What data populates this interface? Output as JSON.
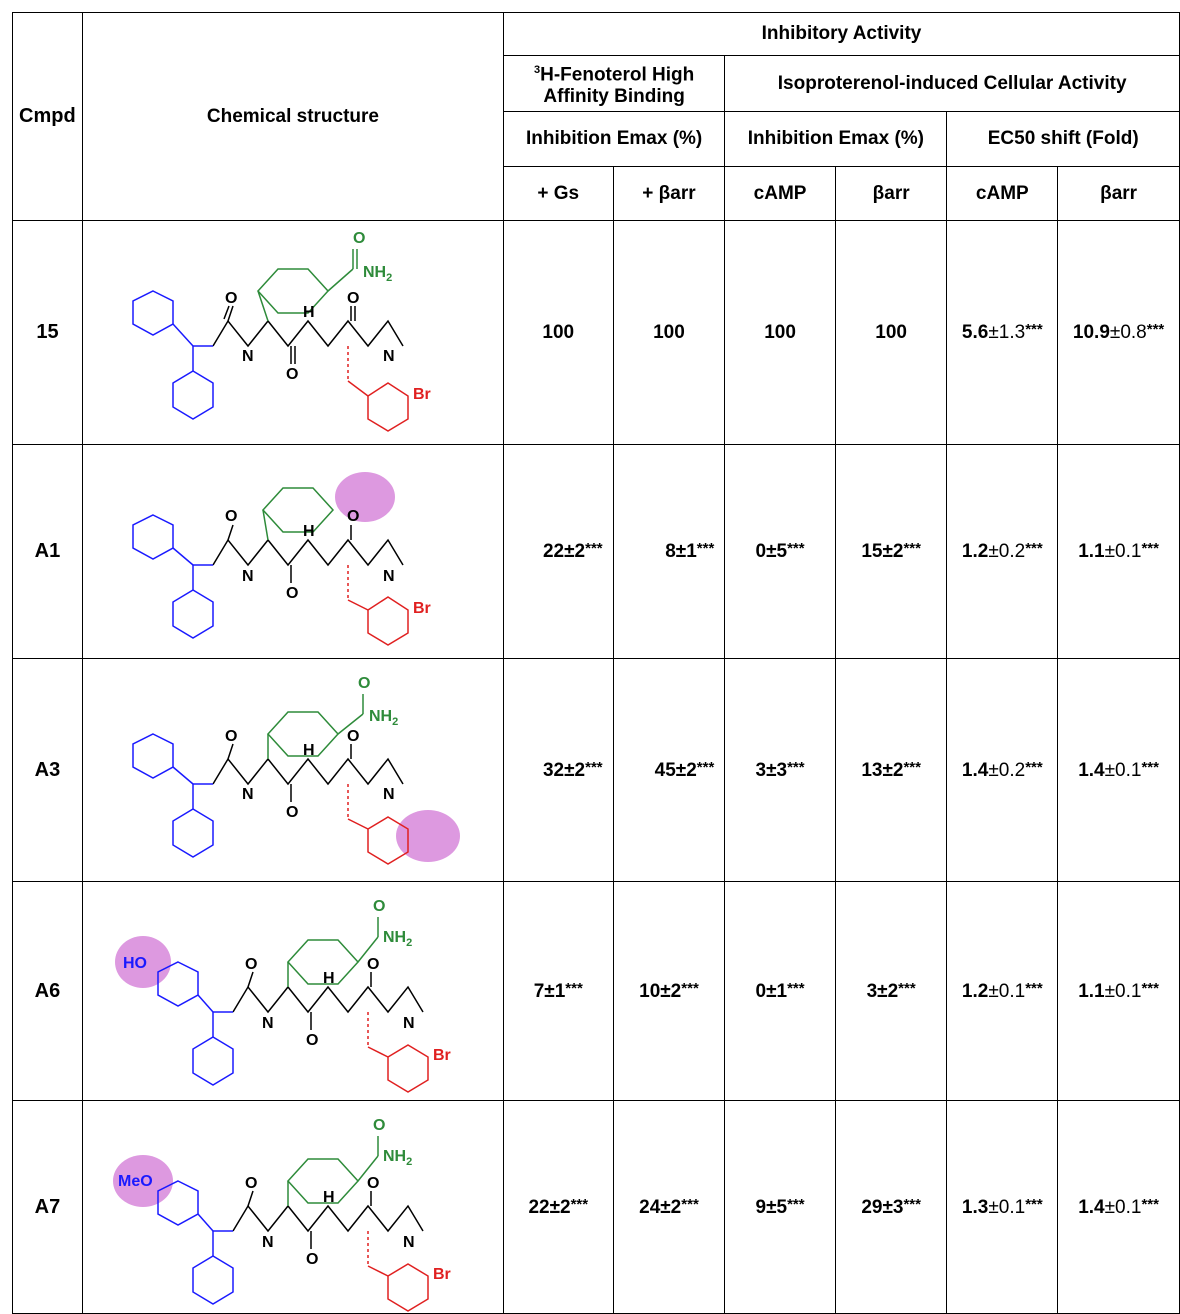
{
  "headers": {
    "cmpd": "Cmpd",
    "structure": "Chemical structure",
    "inhibitory_activity": "Inhibitory Activity",
    "binding_group_sup": "3",
    "binding_group": "H-Fenoterol High Affinity Binding",
    "cellular_group": "Isoproterenol-induced Cellular Activity",
    "binding_sub": "Inhibition Emax (%)",
    "cellular_emax_sub": "Inhibition Emax (%)",
    "cellular_shift_sub": "EC50 shift (Fold)",
    "cols": [
      "+ Gs",
      "+ βarr",
      "cAMP",
      "βarr",
      "cAMP",
      "βarr"
    ]
  },
  "atom_labels": {
    "nh2": "NH",
    "nh2_sub": "2",
    "o": "O",
    "h": "H",
    "n": "N",
    "br": "Br",
    "ho": "HO",
    "meo": "MeO"
  },
  "colors": {
    "blue": "#1a1aff",
    "green": "#2e8b3a",
    "red": "#e02020",
    "highlight": "#dd99e0"
  },
  "rows": [
    {
      "id": "15",
      "gs": "100",
      "barr": "100",
      "camp": "100",
      "barr2": "100",
      "camp_shift": "5.6",
      "camp_shift_err": "±1.3",
      "camp_shift_stars": "***",
      "barr_shift": "10.9",
      "barr_shift_err": "±0.8",
      "barr_shift_stars": "***",
      "stars": ""
    },
    {
      "id": "A1",
      "gs": "22±2",
      "barr": "8±1",
      "camp": "0±5",
      "barr2": "15±2",
      "camp_shift": "1.2",
      "camp_shift_err": "±0.2",
      "camp_shift_stars": "***",
      "barr_shift": "1.1",
      "barr_shift_err": "±0.1",
      "barr_shift_stars": "***",
      "stars": "***"
    },
    {
      "id": "A3",
      "gs": "32±2",
      "barr": "45±2",
      "camp": "3±3",
      "barr2": "13±2",
      "camp_shift": "1.4",
      "camp_shift_err": "±0.2",
      "camp_shift_stars": "***",
      "barr_shift": "1.4",
      "barr_shift_err": "±0.1",
      "barr_shift_stars": "***",
      "stars": "***"
    },
    {
      "id": "A6",
      "gs": "7±1",
      "barr": "10±2",
      "camp": "0±1",
      "barr2": "3±2",
      "camp_shift": "1.2",
      "camp_shift_err": "±0.1",
      "camp_shift_stars": "***",
      "barr_shift": "1.1",
      "barr_shift_err": "±0.1",
      "barr_shift_stars": "***",
      "stars": "***"
    },
    {
      "id": "A7",
      "gs": "22±2",
      "barr": "24±2",
      "camp": "9±5",
      "barr2": "29±3",
      "camp_shift": "1.3",
      "camp_shift_err": "±0.1",
      "camp_shift_stars": "***",
      "barr_shift": "1.4",
      "barr_shift_err": "±0.1",
      "barr_shift_stars": "***",
      "stars": "***"
    }
  ]
}
